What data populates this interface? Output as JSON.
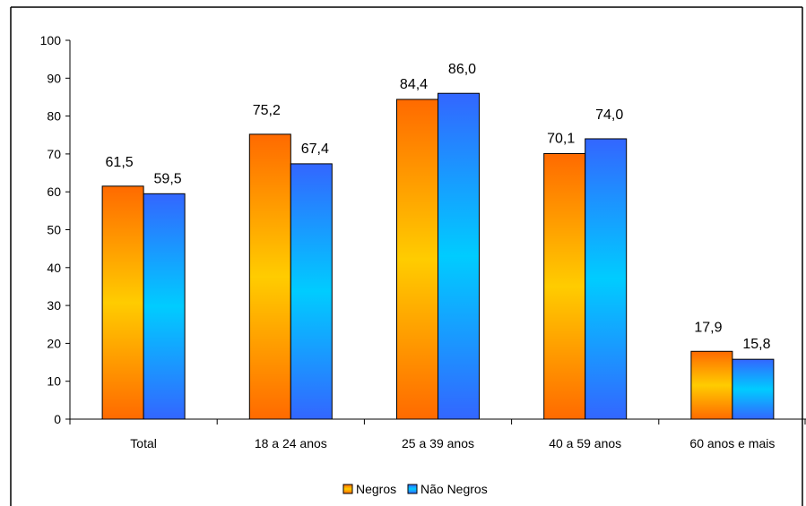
{
  "chart_data": {
    "type": "bar",
    "title": "",
    "xlabel": "",
    "ylabel": "",
    "categories": [
      "Total",
      "18 a 24 anos",
      "25 a 39 anos",
      "40 a 59 anos",
      "60 anos e mais"
    ],
    "series": [
      {
        "name": "Negros",
        "values": [
          61.5,
          75.2,
          84.4,
          70.1,
          17.9
        ],
        "labels": [
          "61,5",
          "75,2",
          "84,4",
          "70,1",
          "17,9"
        ]
      },
      {
        "name": "Não Negros",
        "values": [
          59.5,
          67.4,
          86.0,
          74.0,
          15.8
        ],
        "labels": [
          "59,5",
          "67,4",
          "86,0",
          "74,0",
          "15,8"
        ]
      }
    ],
    "ylim": [
      0,
      100
    ],
    "yticks": [
      0,
      10,
      20,
      30,
      40,
      50,
      60,
      70,
      80,
      90,
      100
    ],
    "ytick_labels": [
      "0",
      "10",
      "20",
      "30",
      "40",
      "50",
      "60",
      "70",
      "80",
      "90",
      "100"
    ],
    "grid": false,
    "legend": "bottom",
    "colors": {
      "negros_top": "#ff6a00",
      "negros_mid": "#ffcc00",
      "nao_negros_top": "#3366ff",
      "nao_negros_mid": "#00ccff",
      "border": "#000000"
    }
  }
}
